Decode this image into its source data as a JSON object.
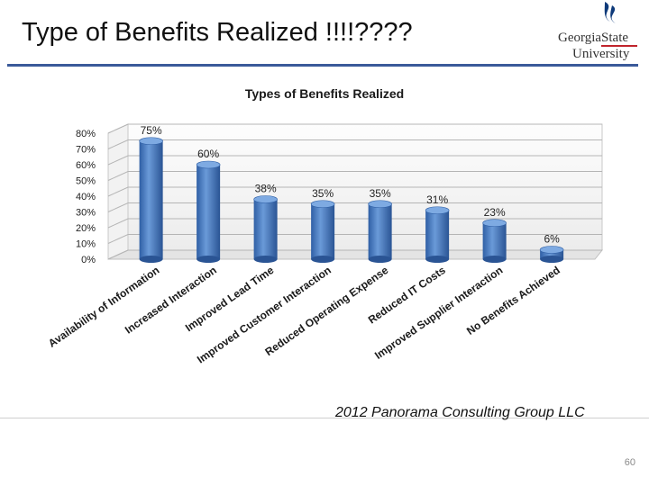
{
  "slide": {
    "title": "Type of Benefits Realized !!!!????",
    "logo_line1": "GeorgiaState",
    "logo_line2": "University",
    "source": "2012 Panorama Consulting Group LLC",
    "page_number": "60"
  },
  "colors": {
    "bar": "#4a7fc4",
    "title_rule": "#3a5a9a",
    "logo_blue": "#0e3a7a",
    "logo_red": "#c0242c"
  },
  "chart_data": {
    "type": "bar",
    "title": "Types of Benefits Realized",
    "categories": [
      "Availability of Information",
      "Increased Interaction",
      "Improved Lead Time",
      "Improved Customer Interaction",
      "Reduced Operating Expense",
      "Reduced IT Costs",
      "Improved Supplier Interaction",
      "No Benefits Achieved"
    ],
    "values": [
      75,
      60,
      38,
      35,
      35,
      31,
      23,
      6
    ],
    "data_labels": [
      "75%",
      "60%",
      "38%",
      "35%",
      "35%",
      "31%",
      "23%",
      "6%"
    ],
    "yticks": [
      "0%",
      "10%",
      "20%",
      "30%",
      "40%",
      "50%",
      "60%",
      "70%",
      "80%"
    ],
    "ylim": [
      0,
      80
    ],
    "grid": true,
    "legend": "none"
  }
}
